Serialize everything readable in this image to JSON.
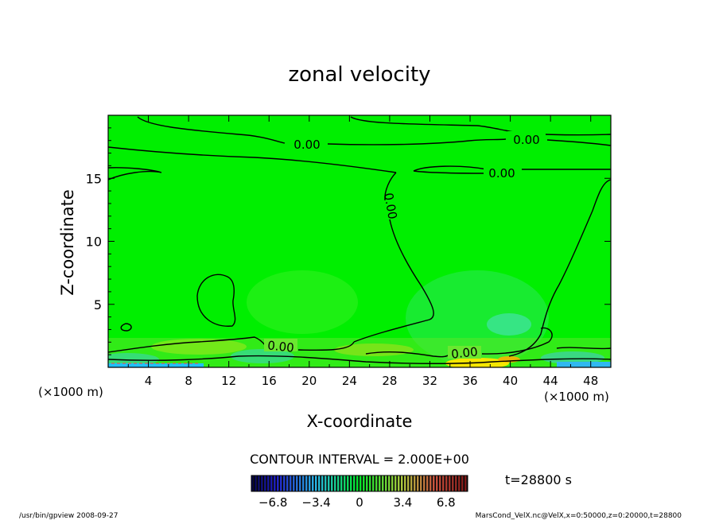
{
  "chart_data": {
    "type": "heatmap",
    "title": "zonal velocity",
    "xlabel": "X-coordinate",
    "ylabel": "Z-coordinate",
    "x_unit": "(×1000 m)",
    "z_unit": "(×1000 m)",
    "xlim": [
      0,
      50
    ],
    "ylim": [
      0,
      20
    ],
    "x_ticks": [
      "4",
      "8",
      "12",
      "16",
      "20",
      "24",
      "28",
      "32",
      "36",
      "40",
      "44",
      "48"
    ],
    "y_ticks": [
      "5",
      "10",
      "15"
    ],
    "contour_label": "0.00",
    "contour_interval_text": "CONTOUR INTERVAL = 2.000E+00",
    "time_text": "t=28800 s",
    "colorbar": {
      "range": [
        -8.5,
        8.5
      ],
      "tick_labels": [
        "−6.8",
        "−3.4",
        "0",
        "3.4",
        "6.8"
      ],
      "tick_values": [
        -6.8,
        -3.4,
        0,
        3.4,
        6.8
      ]
    },
    "field_background": "#00ef00",
    "footer_left": "/usr/bin/gpview   2008-09-27",
    "footer_right": "MarsCond_VelX.nc@VelX,x=0:50000,z=0:20000,t=28800"
  }
}
